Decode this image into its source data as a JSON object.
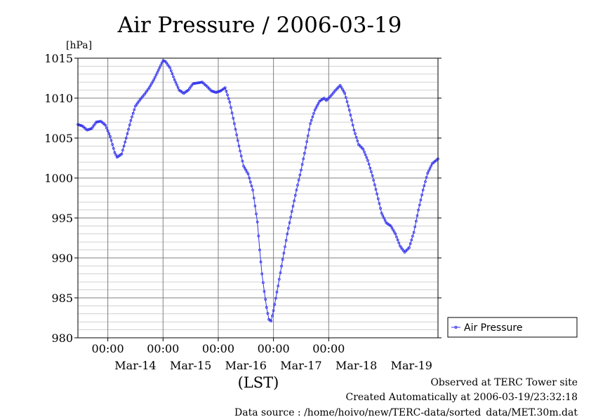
{
  "chart_data": {
    "type": "line",
    "title": "Air Pressure / 2006-03-19",
    "y_unit": "[hPa]",
    "x_axis_label": "(LST)",
    "ylim": [
      980,
      1015
    ],
    "y_ticks": [
      980,
      985,
      990,
      995,
      1000,
      1005,
      1010,
      1015
    ],
    "x_range_days": [
      "2006-03-13 11:00",
      "2006-03-19 23:30"
    ],
    "x_time_labels": [
      {
        "label": "00:00",
        "date": "2006-03-14"
      },
      {
        "label": "00:00",
        "date": "2006-03-15"
      },
      {
        "label": "00:00",
        "date": "2006-03-16"
      },
      {
        "label": "00:00",
        "date": "2006-03-17"
      },
      {
        "label": "00:00",
        "date": "2006-03-18"
      }
    ],
    "x_day_labels": [
      {
        "label": "Mar-14",
        "date": "2006-03-14 12:00"
      },
      {
        "label": "Mar-15",
        "date": "2006-03-15 12:00"
      },
      {
        "label": "Mar-16",
        "date": "2006-03-16 12:00"
      },
      {
        "label": "Mar-17",
        "date": "2006-03-17 12:00"
      },
      {
        "label": "Mar-18",
        "date": "2006-03-18 12:00"
      },
      {
        "label": "Mar-19",
        "date": "2006-03-19 12:00"
      }
    ],
    "grid": true,
    "legend_position": "right",
    "series": [
      {
        "name": "Air Pressure",
        "color": "#3333ee",
        "points": [
          [
            "2006-03-13 11:00",
            1006.7
          ],
          [
            "2006-03-13 13:00",
            1006.5
          ],
          [
            "2006-03-13 15:00",
            1006.0
          ],
          [
            "2006-03-13 17:00",
            1006.2
          ],
          [
            "2006-03-13 19:00",
            1007.0
          ],
          [
            "2006-03-13 21:00",
            1007.1
          ],
          [
            "2006-03-13 23:00",
            1006.6
          ],
          [
            "2006-03-14 01:00",
            1005.2
          ],
          [
            "2006-03-14 03:00",
            1003.2
          ],
          [
            "2006-03-14 04:00",
            1002.6
          ],
          [
            "2006-03-14 06:00",
            1003.0
          ],
          [
            "2006-03-14 08:00",
            1005.0
          ],
          [
            "2006-03-14 10:00",
            1007.2
          ],
          [
            "2006-03-14 12:00",
            1009.0
          ],
          [
            "2006-03-14 14:00",
            1009.8
          ],
          [
            "2006-03-14 16:00",
            1010.5
          ],
          [
            "2006-03-14 18:00",
            1011.3
          ],
          [
            "2006-03-14 20:00",
            1012.3
          ],
          [
            "2006-03-14 22:00",
            1013.5
          ],
          [
            "2006-03-15 00:00",
            1014.7
          ],
          [
            "2006-03-15 01:00",
            1014.6
          ],
          [
            "2006-03-15 03:00",
            1013.8
          ],
          [
            "2006-03-15 05:00",
            1012.3
          ],
          [
            "2006-03-15 07:00",
            1011.0
          ],
          [
            "2006-03-15 09:00",
            1010.6
          ],
          [
            "2006-03-15 11:00",
            1011.0
          ],
          [
            "2006-03-15 13:00",
            1011.8
          ],
          [
            "2006-03-15 15:00",
            1011.9
          ],
          [
            "2006-03-15 17:00",
            1012.0
          ],
          [
            "2006-03-15 19:00",
            1011.5
          ],
          [
            "2006-03-15 21:00",
            1010.9
          ],
          [
            "2006-03-15 23:00",
            1010.7
          ],
          [
            "2006-03-16 01:00",
            1010.9
          ],
          [
            "2006-03-16 03:00",
            1011.3
          ],
          [
            "2006-03-16 05:00",
            1009.5
          ],
          [
            "2006-03-16 07:00",
            1006.8
          ],
          [
            "2006-03-16 09:00",
            1004.0
          ],
          [
            "2006-03-16 11:00",
            1001.5
          ],
          [
            "2006-03-16 13:00",
            1000.5
          ],
          [
            "2006-03-16 15:00",
            998.5
          ],
          [
            "2006-03-16 17:00",
            994.5
          ],
          [
            "2006-03-16 18:00",
            991.0
          ],
          [
            "2006-03-16 19:00",
            988.0
          ],
          [
            "2006-03-16 20:00",
            985.8
          ],
          [
            "2006-03-16 21:00",
            983.8
          ],
          [
            "2006-03-16 22:00",
            982.3
          ],
          [
            "2006-03-16 23:00",
            982.1
          ],
          [
            "2006-03-17 00:00",
            983.4
          ],
          [
            "2006-03-17 02:00",
            986.5
          ],
          [
            "2006-03-17 04:00",
            989.8
          ],
          [
            "2006-03-17 06:00",
            993.0
          ],
          [
            "2006-03-17 08:00",
            995.8
          ],
          [
            "2006-03-17 10:00",
            998.5
          ],
          [
            "2006-03-17 12:00",
            1001.0
          ],
          [
            "2006-03-17 14:00",
            1003.8
          ],
          [
            "2006-03-17 16:00",
            1006.8
          ],
          [
            "2006-03-17 18:00",
            1008.5
          ],
          [
            "2006-03-17 20:00",
            1009.6
          ],
          [
            "2006-03-17 22:00",
            1010.0
          ],
          [
            "2006-03-17 23:00",
            1009.7
          ],
          [
            "2006-03-18 01:00",
            1010.3
          ],
          [
            "2006-03-18 03:00",
            1011.0
          ],
          [
            "2006-03-18 05:00",
            1011.6
          ],
          [
            "2006-03-18 07:00",
            1010.6
          ],
          [
            "2006-03-18 09:00",
            1008.5
          ],
          [
            "2006-03-18 11:00",
            1006.0
          ],
          [
            "2006-03-18 13:00",
            1004.2
          ],
          [
            "2006-03-18 15:00",
            1003.6
          ],
          [
            "2006-03-18 17:00",
            1002.2
          ],
          [
            "2006-03-18 19:00",
            1000.3
          ],
          [
            "2006-03-18 21:00",
            998.0
          ],
          [
            "2006-03-18 23:00",
            995.6
          ],
          [
            "2006-03-19 01:00",
            994.4
          ],
          [
            "2006-03-19 03:00",
            994.0
          ],
          [
            "2006-03-19 05:00",
            993.0
          ],
          [
            "2006-03-19 07:00",
            991.5
          ],
          [
            "2006-03-19 09:00",
            990.7
          ],
          [
            "2006-03-19 11:00",
            991.3
          ],
          [
            "2006-03-19 13:00",
            993.2
          ],
          [
            "2006-03-19 15:00",
            996.0
          ],
          [
            "2006-03-19 17:00",
            998.5
          ],
          [
            "2006-03-19 19:00",
            1000.6
          ],
          [
            "2006-03-19 21:00",
            1001.8
          ],
          [
            "2006-03-19 23:30",
            1002.4
          ]
        ]
      }
    ]
  },
  "footer": {
    "line1": "Observed at TERC Tower site",
    "line2": "Created Automatically at 2006-03-19/23:32:18",
    "line3": "Data source : /home/hoivo/new/TERC-data/sorted_data/MET.30m.dat"
  }
}
